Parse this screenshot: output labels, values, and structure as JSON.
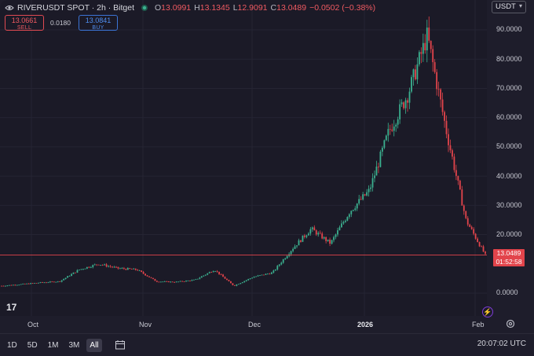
{
  "header": {
    "symbol": "RIVERUSDT SPOT · 2h · Bitget",
    "open_label": "O",
    "open": "13.0991",
    "high_label": "H",
    "high": "13.1345",
    "low_label": "L",
    "low": "12.9091",
    "close_label": "C",
    "close": "13.0489",
    "change": "−0.0502 (−0.38%)"
  },
  "order": {
    "sell_price": "13.0661",
    "sell_label": "SELL",
    "spread": "0.0180",
    "buy_price": "13.0841",
    "buy_label": "BUY"
  },
  "currency": {
    "value": "USDT"
  },
  "price_axis": [
    "90.0000",
    "80.0000",
    "70.0000",
    "60.0000",
    "50.0000",
    "40.0000",
    "30.0000",
    "20.0000",
    "0.0000"
  ],
  "last_price": {
    "price": "13.0489",
    "countdown": "01:52:58"
  },
  "time_axis": [
    {
      "label": "Oct",
      "bold": false
    },
    {
      "label": "Nov",
      "bold": false
    },
    {
      "label": "Dec",
      "bold": false
    },
    {
      "label": "2026",
      "bold": true
    },
    {
      "label": "Feb",
      "bold": false
    }
  ],
  "logo": {
    "text": "17"
  },
  "bottom": {
    "ranges": [
      "1D",
      "5D",
      "1M",
      "3M",
      "All"
    ],
    "active": "All",
    "clock": "20:07:02 UTC"
  },
  "colors": {
    "up": "#3bb08f",
    "down": "#e2444b",
    "background": "#1b1a27"
  },
  "chart_data": {
    "type": "candlestick",
    "ylim": [
      0,
      90
    ],
    "x": [
      "Sep",
      "Oct",
      "Nov",
      "Dec",
      "2026",
      "Jan",
      "Feb"
    ],
    "values_series": {
      "name": "",
      "points": [
        [
          "Sep",
          2.5
        ],
        [
          "Oct",
          3.0
        ],
        [
          "Oct",
          3.6
        ],
        [
          "Oct",
          4.0
        ],
        [
          "Nov",
          8.0
        ],
        [
          "Nov",
          10.0
        ],
        [
          "Nov",
          8.5
        ],
        [
          "Nov",
          8.0
        ],
        [
          "Dec",
          4.0
        ],
        [
          "Dec",
          3.8
        ],
        [
          "Dec",
          4.5
        ],
        [
          "Dec",
          8.0
        ],
        [
          "Dec",
          2.5
        ],
        [
          "2026",
          5.5
        ],
        [
          "2026",
          7.0
        ],
        [
          "2026",
          15.0
        ],
        [
          "2026",
          22.0
        ],
        [
          "2026",
          17.0
        ],
        [
          "Jan",
          28.0
        ],
        [
          "Jan",
          35.0
        ],
        [
          "Jan",
          55.0
        ],
        [
          "Jan",
          68.0
        ],
        [
          "Jan",
          88.0
        ],
        [
          "Jan",
          55.0
        ],
        [
          "Feb",
          25.0
        ],
        [
          "Feb",
          13.0
        ]
      ]
    },
    "last_price": 13.0489
  }
}
